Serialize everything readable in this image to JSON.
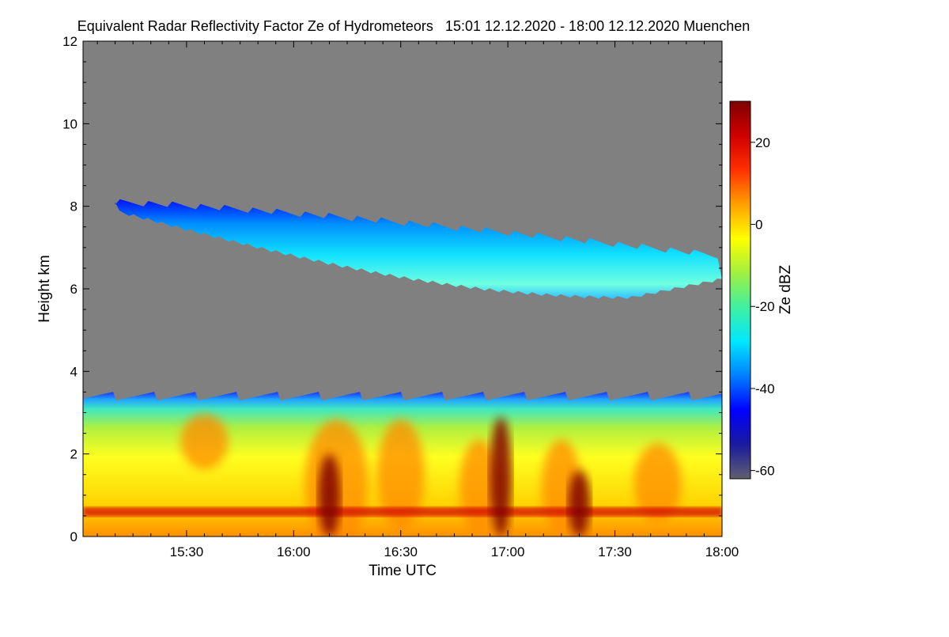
{
  "chart_data": {
    "type": "heatmap",
    "title": "Equivalent Radar Reflectivity Factor Ze of Hydrometeors   15:01 12.12.2020 - 18:00 12.12.2020 Muenchen",
    "xlabel": "Time UTC",
    "ylabel": "Height km",
    "colorbar_label": "Ze dBZ",
    "xlim": [
      "15:01",
      "18:00"
    ],
    "x_ticks": [
      "15:30",
      "16:00",
      "16:30",
      "17:00",
      "17:30",
      "18:00"
    ],
    "ylim": [
      0,
      12
    ],
    "y_ticks": [
      "0",
      "2",
      "4",
      "6",
      "8",
      "10",
      "12"
    ],
    "colorbar_range": [
      -62,
      30
    ],
    "colorbar_ticks": [
      "20",
      "0",
      "-20",
      "-40",
      "-60"
    ],
    "colormap": [
      "#606070",
      "#1a1aa0",
      "#0000ff",
      "#0080ff",
      "#00e8ff",
      "#40f0a0",
      "#a0f040",
      "#ffff00",
      "#ffa000",
      "#ff3000",
      "#d00000",
      "#800000"
    ],
    "background_color": "#808080",
    "features": [
      {
        "name": "upper cloud layer",
        "x_range": [
          "15:10",
          "18:00"
        ],
        "top_km": [
          8.1,
          6.8
        ],
        "base_km": [
          7.9,
          5.8
        ],
        "ze_dbz": [
          -40,
          -25
        ]
      },
      {
        "name": "lower precipitation layer",
        "x_range": [
          "15:01",
          "18:00"
        ],
        "top_km": 3.4,
        "base_km": 0,
        "ze_dbz": [
          -10,
          20
        ]
      },
      {
        "name": "melting layer bright band",
        "height_km": 0.6,
        "ze_dbz": 22
      },
      {
        "name": "intense precipitation cores",
        "times": [
          "16:10",
          "16:58",
          "17:20"
        ],
        "max_height_km": [
          2.0,
          2.9,
          1.6
        ],
        "ze_dbz": 28
      }
    ]
  }
}
